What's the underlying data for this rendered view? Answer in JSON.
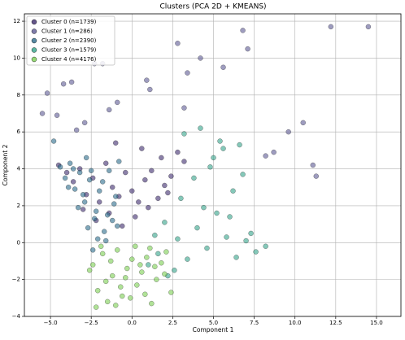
{
  "chart_data": {
    "type": "scatter",
    "title": "Clusters (PCA 2D + KMEANS)",
    "x_label": "Component 1",
    "y_label": "Component 2",
    "xlim": [
      -6.6,
      16.5
    ],
    "ylim": [
      -4.0,
      12.4
    ],
    "xticks": [
      {
        "value": -5,
        "label": "−5.0"
      },
      {
        "value": -2.5,
        "label": "−2.5"
      },
      {
        "value": 0,
        "label": "0.0"
      },
      {
        "value": 2.5,
        "label": "2.5"
      },
      {
        "value": 5,
        "label": "5.0"
      },
      {
        "value": 7.5,
        "label": "7.5"
      },
      {
        "value": 10,
        "label": "10.0"
      },
      {
        "value": 12.5,
        "label": "12.5"
      },
      {
        "value": 15,
        "label": "15.0"
      }
    ],
    "yticks": [
      {
        "value": -4,
        "label": "−4"
      },
      {
        "value": -2,
        "label": "−2"
      },
      0,
      2,
      4,
      6,
      8,
      10,
      12
    ],
    "grid": true,
    "legend": "upper-left",
    "series": [
      {
        "name": "Cluster 0 (n=1739)",
        "color": "#3e2c6e",
        "x": [
          -4.5,
          -4,
          -3.6,
          -3.2,
          -2.8,
          -2.4,
          -2,
          -1.6,
          -1.2,
          -0.8,
          -0.4,
          0,
          0.4,
          0.8,
          1.2,
          1.6,
          2,
          2.4,
          2.8,
          3.2,
          -3,
          -2.2,
          -1.4,
          -0.6,
          0.2,
          1,
          1.8,
          -1,
          0.6,
          2.2
        ],
        "y": [
          4.2,
          3.8,
          3.3,
          4,
          2.6,
          3.5,
          2.2,
          4.3,
          3,
          2.5,
          3.8,
          2.8,
          2.2,
          3.4,
          3.9,
          2.4,
          3.1,
          3.6,
          4.9,
          4.4,
          1.8,
          1.2,
          1.6,
          0.9,
          1.4,
          1.9,
          4.6,
          5.4,
          5.1,
          2.7
        ]
      },
      {
        "name": "Cluster 1 (n=286)",
        "color": "#5e5a94",
        "x": [
          -5.5,
          -5.2,
          -4.2,
          -3.7,
          -3.4,
          -2.3,
          -1.8,
          -1.4,
          -0.9,
          0.9,
          1.1,
          2.8,
          3.2,
          3.4,
          4.2,
          5.6,
          6.8,
          7.1,
          8.2,
          8.7,
          9.6,
          10.5,
          11.1,
          11.3,
          12.2,
          14.5,
          -4.6,
          -2.9
        ],
        "y": [
          7,
          8.1,
          8.6,
          8.7,
          6.1,
          9.7,
          9.7,
          7.2,
          7.6,
          8.8,
          8.3,
          10.8,
          7.3,
          9.2,
          10,
          9.5,
          11.5,
          10.5,
          4.7,
          4.9,
          6,
          6.5,
          4.2,
          3.6,
          11.7,
          11.7,
          6.9,
          6.5
        ]
      },
      {
        "name": "Cluster 2 (n=2390)",
        "color": "#2c6c8c",
        "x": [
          -4.4,
          -4.1,
          -3.8,
          -3.5,
          -3.2,
          -2.9,
          -2.6,
          -2.3,
          -2,
          -1.7,
          -1.4,
          -1.1,
          -0.8,
          -3.9,
          -3.3,
          -2.7,
          -2.1,
          -1.5,
          -0.9,
          -3,
          -2.4,
          -1.8,
          -1.2,
          -2.8,
          -2.2,
          -1.6,
          -1,
          -2.5,
          -3.6,
          -4.8
        ],
        "y": [
          4.1,
          3.5,
          4.3,
          2.9,
          3.8,
          2.2,
          3.4,
          1.3,
          2.8,
          0.6,
          3.9,
          2.1,
          4.4,
          3,
          1.9,
          0.8,
          0.2,
          1.5,
          0.9,
          2.6,
          -0.4,
          3.3,
          1.2,
          4.6,
          1.7,
          0.1,
          2.5,
          3.9,
          4.0,
          5.5
        ]
      },
      {
        "name": "Cluster 3 (n=1579)",
        "color": "#33a48a",
        "x": [
          1,
          1.6,
          2.2,
          2.8,
          3.4,
          4,
          4.6,
          5.2,
          5.8,
          6.4,
          7,
          7.6,
          8.2,
          3,
          3.8,
          4.4,
          5,
          5.6,
          6.2,
          6.8,
          2,
          2.6,
          4.2,
          5.4,
          6.6,
          7.3,
          3.2,
          4.8,
          6,
          1.4
        ],
        "y": [
          -1.2,
          -0.6,
          -1.8,
          0.2,
          -0.9,
          0.8,
          -0.3,
          1.6,
          0.3,
          -0.8,
          0.1,
          -0.5,
          -0.2,
          2.4,
          3.5,
          1.9,
          4.6,
          5.1,
          2.8,
          3.7,
          1.1,
          -1.5,
          6.2,
          5.5,
          5.3,
          0.5,
          5.9,
          4.1,
          1.4,
          0.4
        ]
      },
      {
        "name": "Cluster 4 (n=4176)",
        "color": "#7ccf52",
        "x": [
          -2.4,
          -2.1,
          -1.8,
          -1.5,
          -1.2,
          -0.9,
          -0.6,
          -0.3,
          0,
          0.3,
          0.6,
          0.9,
          1.2,
          1.5,
          1.8,
          2.1,
          2.4,
          -2.2,
          -1.6,
          -1,
          -0.4,
          0.2,
          0.8,
          1.4,
          2,
          -1.9,
          -1.3,
          -0.7,
          -0.1,
          0.5,
          1.1,
          -2.6
        ],
        "y": [
          -1.2,
          -2.6,
          -0.6,
          -3.2,
          -1.8,
          -0.4,
          -2.9,
          -1.4,
          -0.9,
          -2.3,
          -1.6,
          -0.8,
          -3.3,
          -2,
          -1.1,
          -0.5,
          -2.7,
          -3.5,
          -2.1,
          -3.4,
          -1.9,
          -0.2,
          -2.8,
          -1.3,
          -1.7,
          -0.2,
          -1,
          -2.4,
          -3,
          -1.2,
          -0.3,
          -1.5
        ]
      }
    ]
  }
}
